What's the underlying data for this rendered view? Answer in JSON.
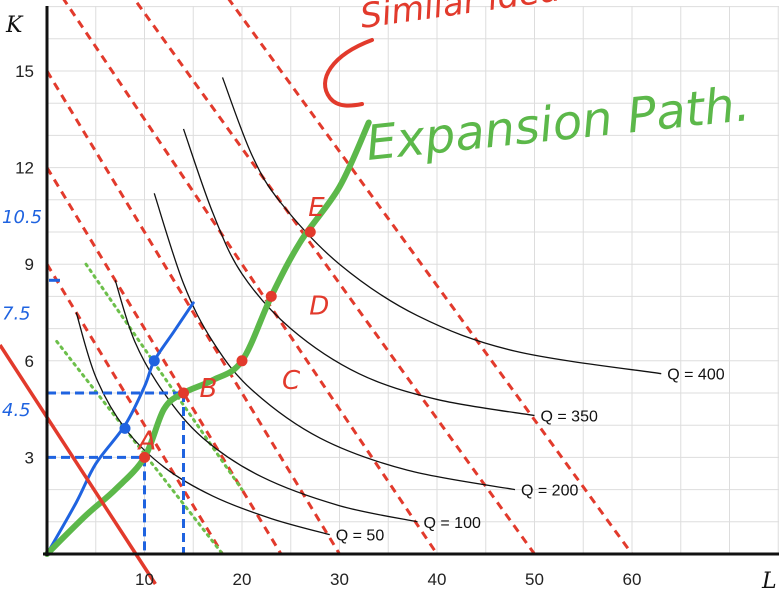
{
  "chart_data": {
    "type": "line",
    "xlabel": "L",
    "ylabel": "K",
    "xlim": [
      0,
      75
    ],
    "ylim": [
      0,
      16
    ],
    "x_ticks": [
      10,
      20,
      30,
      40,
      50,
      60
    ],
    "y_ticks": [
      3,
      6,
      9,
      12,
      15
    ],
    "grid": true,
    "isoquants": [
      {
        "label": "Q = 50",
        "points": [
          [
            3,
            7.5
          ],
          [
            5,
            5.5
          ],
          [
            8,
            3.9
          ],
          [
            12,
            2.7
          ],
          [
            17,
            1.8
          ],
          [
            23,
            1.1
          ],
          [
            29,
            0.6
          ]
        ]
      },
      {
        "label": "Q = 100",
        "points": [
          [
            7,
            8.5
          ],
          [
            9,
            6.6
          ],
          [
            12,
            5.0
          ],
          [
            16,
            3.6
          ],
          [
            22,
            2.4
          ],
          [
            30,
            1.5
          ],
          [
            38,
            1.0
          ]
        ]
      },
      {
        "label": "Q = 200",
        "points": [
          [
            11,
            11.2
          ],
          [
            14,
            8.4
          ],
          [
            17,
            6.6
          ],
          [
            21,
            5.1
          ],
          [
            28,
            3.6
          ],
          [
            37,
            2.6
          ],
          [
            48,
            2.0
          ]
        ]
      },
      {
        "label": "Q = 350",
        "points": [
          [
            14,
            13.2
          ],
          [
            17,
            10.6
          ],
          [
            20,
            8.7
          ],
          [
            25,
            7.0
          ],
          [
            32,
            5.6
          ],
          [
            40,
            4.8
          ],
          [
            50,
            4.3
          ]
        ]
      },
      {
        "label": "Q = 400",
        "points": [
          [
            18,
            14.8
          ],
          [
            21,
            12.4
          ],
          [
            24,
            10.9
          ],
          [
            30,
            9.0
          ],
          [
            38,
            7.4
          ],
          [
            48,
            6.3
          ],
          [
            63,
            5.6
          ]
        ]
      }
    ],
    "isocost_lines": [
      {
        "points": [
          [
            0,
            9
          ],
          [
            18,
            0
          ]
        ]
      },
      {
        "points": [
          [
            0,
            12
          ],
          [
            24,
            0
          ]
        ]
      },
      {
        "points": [
          [
            0,
            15
          ],
          [
            30,
            0
          ]
        ]
      },
      {
        "points": [
          [
            0,
            18
          ],
          [
            40,
            0
          ]
        ]
      },
      {
        "points": [
          [
            0,
            21
          ],
          [
            50,
            0
          ]
        ]
      },
      {
        "points": [
          [
            0,
            25
          ],
          [
            60,
            0
          ]
        ]
      }
    ],
    "budget_line": {
      "points": [
        [
          0,
          5
        ],
        [
          10.5,
          0
        ]
      ]
    },
    "dotted_lines": [
      {
        "points": [
          [
            1,
            6.6
          ],
          [
            18,
            0
          ]
        ]
      },
      {
        "points": [
          [
            4,
            9.0
          ],
          [
            20,
            2.0
          ]
        ]
      }
    ],
    "expansion_path": {
      "label": "Expansion Path.",
      "points": [
        [
          0,
          0
        ],
        [
          4,
          1.2
        ],
        [
          7,
          2.0
        ],
        [
          10,
          3.0
        ],
        [
          12,
          4.5
        ],
        [
          14,
          5.0
        ],
        [
          17,
          5.4
        ],
        [
          20,
          6.0
        ],
        [
          23,
          8.0
        ],
        [
          26,
          9.7
        ],
        [
          30,
          11.4
        ],
        [
          33,
          13.4
        ]
      ]
    },
    "blue_path": {
      "points": [
        [
          0,
          0
        ],
        [
          3,
          1.6
        ],
        [
          5,
          2.8
        ],
        [
          8,
          4.0
        ],
        [
          10,
          5.2
        ],
        [
          11,
          6.0
        ],
        [
          13,
          6.9
        ],
        [
          15,
          7.8
        ]
      ]
    },
    "points": [
      {
        "label": "A",
        "x": 10,
        "y": 3.0,
        "color": "#e23a2c"
      },
      {
        "label": "B",
        "x": 14,
        "y": 5.0,
        "color": "#e23a2c"
      },
      {
        "label": "C",
        "x": 20,
        "y": 6.0,
        "color": "#e23a2c"
      },
      {
        "label": "D",
        "x": 23,
        "y": 8.0,
        "color": "#e23a2c"
      },
      {
        "label": "E",
        "x": 27,
        "y": 10.0,
        "color": "#e23a2c"
      },
      {
        "label": "",
        "x": 8,
        "y": 3.9,
        "color": "#1f63e0"
      },
      {
        "label": "",
        "x": 11,
        "y": 6.0,
        "color": "#1f63e0"
      }
    ],
    "guide_lines": [
      {
        "from": [
          0,
          3
        ],
        "to": [
          10,
          3
        ],
        "color": "#1f63e0"
      },
      {
        "from": [
          10,
          3
        ],
        "to": [
          10,
          0
        ],
        "color": "#1f63e0"
      },
      {
        "from": [
          0,
          5
        ],
        "to": [
          14,
          5
        ],
        "color": "#1f63e0"
      },
      {
        "from": [
          14,
          5
        ],
        "to": [
          14,
          0
        ],
        "color": "#1f63e0"
      }
    ],
    "annotations": {
      "top_note": "Similar idea as E",
      "blue_y_marks": [
        {
          "text": "10.5",
          "y": 10.5
        },
        {
          "text": "7.5",
          "y": 7.5
        },
        {
          "text": "4.5",
          "y": 4.5
        }
      ]
    },
    "colors": {
      "isocost": "#e23a2c",
      "expansion": "#5cb84a",
      "blue": "#1f63e0",
      "dotted": "#6cbf4a",
      "isoquant": "#111111",
      "grid": "#dddddd"
    }
  }
}
